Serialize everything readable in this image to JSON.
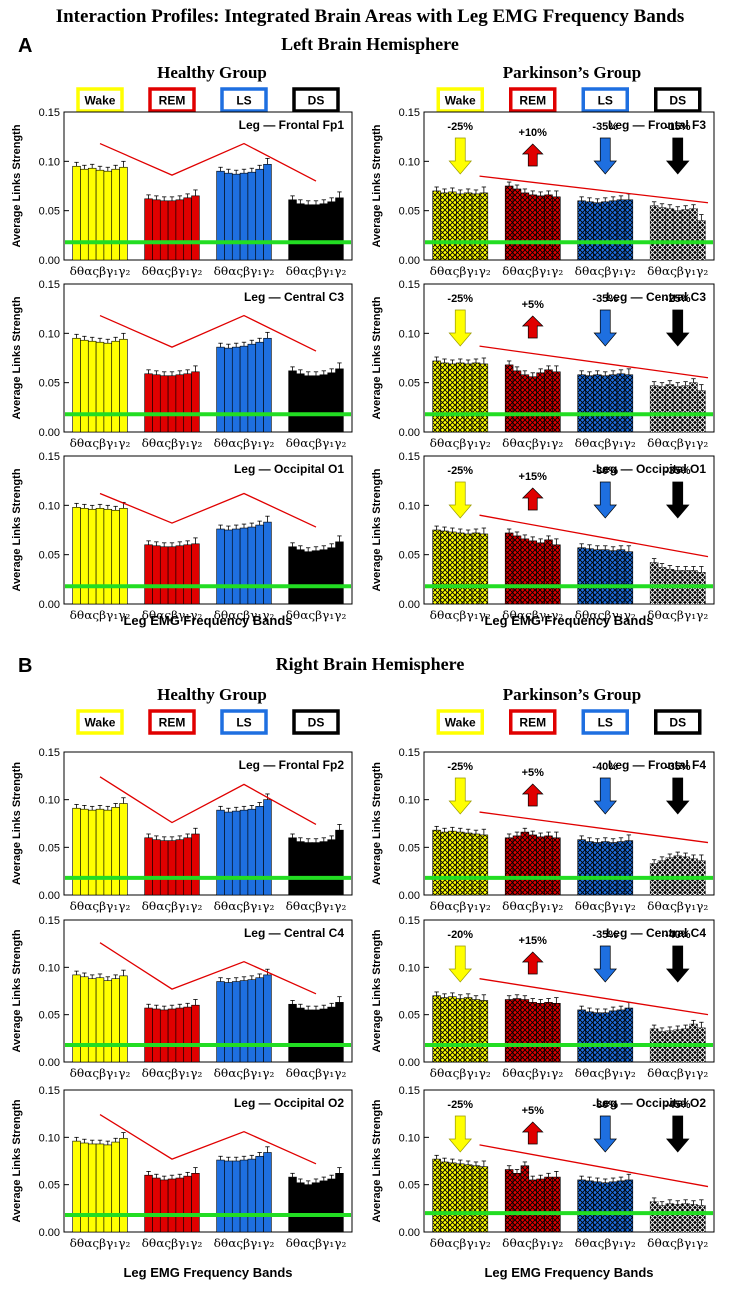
{
  "figure": {
    "title": "Interaction Profiles: Integrated Brain Areas with Leg EMG Frequency Bands",
    "sections": [
      {
        "letter": "A",
        "title": "Left Brain Hemisphere",
        "healthy": "Healthy Group",
        "parkinson": "Parkinson’s Group"
      },
      {
        "letter": "B",
        "title": "Right Brain Hemisphere",
        "healthy": "Healthy Group",
        "parkinson": "Parkinson’s Group"
      }
    ],
    "xlabel": "Leg EMG Frequency Bands",
    "band_label": "δθαςβγ₁γ₂",
    "legend": [
      {
        "label": "Wake",
        "color": "#ffff00"
      },
      {
        "label": "REM",
        "color": "#e00000"
      },
      {
        "label": "LS",
        "color": "#1e6fe0"
      },
      {
        "label": "DS",
        "color": "#000000"
      }
    ]
  },
  "chart_data": [
    {
      "type": "bar",
      "title": "Leg — Frontal Fp1",
      "group": "Healthy",
      "ylabel": "Average Links Strength",
      "ylim": [
        0,
        0.15
      ],
      "yticks": [
        "0.00",
        "0.05",
        "0.10",
        "0.15"
      ],
      "threshold": 0.018,
      "stages": [
        "Wake",
        "REM",
        "LS",
        "DS"
      ],
      "bands": [
        "δ",
        "θ",
        "α",
        "σ",
        "β",
        "γ1",
        "γ2"
      ],
      "series": [
        {
          "name": "Wake",
          "values": [
            0.095,
            0.092,
            0.093,
            0.091,
            0.09,
            0.092,
            0.094
          ]
        },
        {
          "name": "REM",
          "values": [
            0.062,
            0.061,
            0.06,
            0.06,
            0.061,
            0.063,
            0.065
          ]
        },
        {
          "name": "LS",
          "values": [
            0.09,
            0.088,
            0.087,
            0.088,
            0.089,
            0.092,
            0.097
          ]
        },
        {
          "name": "DS",
          "values": [
            0.061,
            0.057,
            0.056,
            0.056,
            0.057,
            0.059,
            0.063
          ]
        }
      ],
      "trend": [
        0.118,
        0.086,
        0.118,
        0.08
      ]
    },
    {
      "type": "bar",
      "title": "Leg — Frontal F3",
      "group": "Parkinson",
      "ylabel": "Average Links Strength",
      "ylim": [
        0,
        0.15
      ],
      "yticks": [
        "0.00",
        "0.05",
        "0.10",
        "0.15"
      ],
      "threshold": 0.018,
      "stages": [
        "Wake",
        "REM",
        "LS",
        "DS"
      ],
      "bands": [
        "δ",
        "θ",
        "α",
        "σ",
        "β",
        "γ1",
        "γ2"
      ],
      "series": [
        {
          "name": "Wake",
          "values": [
            0.07,
            0.068,
            0.069,
            0.067,
            0.068,
            0.067,
            0.068
          ]
        },
        {
          "name": "REM",
          "values": [
            0.075,
            0.072,
            0.068,
            0.066,
            0.065,
            0.066,
            0.064
          ]
        },
        {
          "name": "LS",
          "values": [
            0.06,
            0.059,
            0.058,
            0.059,
            0.06,
            0.061,
            0.061
          ]
        },
        {
          "name": "DS",
          "values": [
            0.055,
            0.053,
            0.052,
            0.05,
            0.051,
            0.052,
            0.04
          ]
        }
      ],
      "changes": [
        "-25%",
        "+10%",
        "-35%",
        "-15%"
      ],
      "arrows": [
        "down",
        "up",
        "down",
        "down"
      ],
      "trend_line": [
        0.085,
        0.058
      ]
    },
    {
      "type": "bar",
      "title": "Leg — Central C3",
      "group": "Healthy",
      "ylabel": "Average Links Strength",
      "ylim": [
        0,
        0.15
      ],
      "yticks": [
        "0.00",
        "0.05",
        "0.10",
        "0.15"
      ],
      "threshold": 0.018,
      "stages": [
        "Wake",
        "REM",
        "LS",
        "DS"
      ],
      "bands": [
        "δ",
        "θ",
        "α",
        "σ",
        "β",
        "γ1",
        "γ2"
      ],
      "series": [
        {
          "name": "Wake",
          "values": [
            0.095,
            0.093,
            0.092,
            0.091,
            0.09,
            0.092,
            0.094
          ]
        },
        {
          "name": "REM",
          "values": [
            0.059,
            0.058,
            0.057,
            0.057,
            0.058,
            0.059,
            0.061
          ]
        },
        {
          "name": "LS",
          "values": [
            0.086,
            0.085,
            0.086,
            0.087,
            0.089,
            0.091,
            0.095
          ]
        },
        {
          "name": "DS",
          "values": [
            0.062,
            0.059,
            0.057,
            0.057,
            0.058,
            0.06,
            0.064
          ]
        }
      ],
      "trend": [
        0.118,
        0.086,
        0.118,
        0.082
      ]
    },
    {
      "type": "bar",
      "title": "Leg — Central C3",
      "group": "Parkinson",
      "ylabel": "Average Links Strength",
      "ylim": [
        0,
        0.15
      ],
      "yticks": [
        "0.00",
        "0.05",
        "0.10",
        "0.15"
      ],
      "threshold": 0.018,
      "stages": [
        "Wake",
        "REM",
        "LS",
        "DS"
      ],
      "bands": [
        "δ",
        "θ",
        "α",
        "σ",
        "β",
        "γ1",
        "γ2"
      ],
      "series": [
        {
          "name": "Wake",
          "values": [
            0.072,
            0.07,
            0.069,
            0.07,
            0.069,
            0.07,
            0.069
          ]
        },
        {
          "name": "REM",
          "values": [
            0.068,
            0.062,
            0.058,
            0.056,
            0.06,
            0.063,
            0.061
          ]
        },
        {
          "name": "LS",
          "values": [
            0.058,
            0.057,
            0.058,
            0.057,
            0.058,
            0.059,
            0.058
          ]
        },
        {
          "name": "DS",
          "values": [
            0.047,
            0.046,
            0.048,
            0.046,
            0.047,
            0.05,
            0.042
          ]
        }
      ],
      "changes": [
        "-25%",
        "+5%",
        "-35%",
        "-25%"
      ],
      "arrows": [
        "down",
        "up",
        "down",
        "down"
      ],
      "trend_line": [
        0.087,
        0.055
      ]
    },
    {
      "type": "bar",
      "title": "Leg — Occipital O1",
      "group": "Healthy",
      "ylabel": "Average Links Strength",
      "ylim": [
        0,
        0.15
      ],
      "yticks": [
        "0.00",
        "0.05",
        "0.10",
        "0.15"
      ],
      "threshold": 0.018,
      "stages": [
        "Wake",
        "REM",
        "LS",
        "DS"
      ],
      "bands": [
        "δ",
        "θ",
        "α",
        "σ",
        "β",
        "γ1",
        "γ2"
      ],
      "series": [
        {
          "name": "Wake",
          "values": [
            0.098,
            0.097,
            0.096,
            0.097,
            0.096,
            0.095,
            0.097
          ]
        },
        {
          "name": "REM",
          "values": [
            0.06,
            0.059,
            0.058,
            0.058,
            0.059,
            0.06,
            0.061
          ]
        },
        {
          "name": "LS",
          "values": [
            0.076,
            0.075,
            0.076,
            0.077,
            0.078,
            0.08,
            0.083
          ]
        },
        {
          "name": "DS",
          "values": [
            0.058,
            0.055,
            0.053,
            0.054,
            0.055,
            0.057,
            0.063
          ]
        }
      ],
      "trend": [
        0.112,
        0.082,
        0.112,
        0.078
      ]
    },
    {
      "type": "bar",
      "title": "Leg — Occipital O1",
      "group": "Parkinson",
      "ylabel": "Average Links Strength",
      "ylim": [
        0,
        0.15
      ],
      "yticks": [
        "0.00",
        "0.05",
        "0.10",
        "0.15"
      ],
      "threshold": 0.018,
      "stages": [
        "Wake",
        "REM",
        "LS",
        "DS"
      ],
      "bands": [
        "δ",
        "θ",
        "α",
        "σ",
        "β",
        "γ1",
        "γ2"
      ],
      "series": [
        {
          "name": "Wake",
          "values": [
            0.075,
            0.074,
            0.073,
            0.072,
            0.071,
            0.072,
            0.071
          ]
        },
        {
          "name": "REM",
          "values": [
            0.072,
            0.069,
            0.066,
            0.064,
            0.062,
            0.065,
            0.06
          ]
        },
        {
          "name": "LS",
          "values": [
            0.057,
            0.056,
            0.055,
            0.055,
            0.054,
            0.055,
            0.053
          ]
        },
        {
          "name": "DS",
          "values": [
            0.042,
            0.037,
            0.035,
            0.034,
            0.034,
            0.034,
            0.032
          ]
        }
      ],
      "changes": [
        "-25%",
        "+15%",
        "-30%",
        "-35%"
      ],
      "arrows": [
        "down",
        "up",
        "down",
        "down"
      ],
      "trend_line": [
        0.09,
        0.048
      ]
    },
    {
      "type": "bar",
      "title": "Leg — Frontal Fp2",
      "group": "Healthy",
      "ylabel": "Average Links Strength",
      "ylim": [
        0,
        0.15
      ],
      "yticks": [
        "0.00",
        "0.05",
        "0.10",
        "0.15"
      ],
      "threshold": 0.018,
      "stages": [
        "Wake",
        "REM",
        "LS",
        "DS"
      ],
      "bands": [
        "δ",
        "θ",
        "α",
        "σ",
        "β",
        "γ1",
        "γ2"
      ],
      "series": [
        {
          "name": "Wake",
          "values": [
            0.091,
            0.09,
            0.089,
            0.09,
            0.089,
            0.092,
            0.096
          ]
        },
        {
          "name": "REM",
          "values": [
            0.06,
            0.058,
            0.057,
            0.057,
            0.058,
            0.06,
            0.064
          ]
        },
        {
          "name": "LS",
          "values": [
            0.089,
            0.087,
            0.088,
            0.089,
            0.09,
            0.093,
            0.1
          ]
        },
        {
          "name": "DS",
          "values": [
            0.06,
            0.056,
            0.055,
            0.055,
            0.056,
            0.058,
            0.068
          ]
        }
      ],
      "trend": [
        0.124,
        0.076,
        0.116,
        0.074
      ]
    },
    {
      "type": "bar",
      "title": "Leg — Frontal F4",
      "group": "Parkinson",
      "ylabel": "Average Links Strength",
      "ylim": [
        0,
        0.15
      ],
      "yticks": [
        "0.00",
        "0.05",
        "0.10",
        "0.15"
      ],
      "threshold": 0.018,
      "stages": [
        "Wake",
        "REM",
        "LS",
        "DS"
      ],
      "bands": [
        "δ",
        "θ",
        "α",
        "σ",
        "β",
        "γ1",
        "γ2"
      ],
      "series": [
        {
          "name": "Wake",
          "values": [
            0.068,
            0.066,
            0.067,
            0.066,
            0.065,
            0.064,
            0.063
          ]
        },
        {
          "name": "REM",
          "values": [
            0.06,
            0.062,
            0.066,
            0.063,
            0.061,
            0.062,
            0.06
          ]
        },
        {
          "name": "LS",
          "values": [
            0.058,
            0.056,
            0.055,
            0.056,
            0.055,
            0.056,
            0.057
          ]
        },
        {
          "name": "DS",
          "values": [
            0.033,
            0.036,
            0.039,
            0.041,
            0.04,
            0.038,
            0.036
          ]
        }
      ],
      "changes": [
        "-25%",
        "+5%",
        "-40%",
        "-35%"
      ],
      "arrows": [
        "down",
        "up",
        "down",
        "down"
      ],
      "trend_line": [
        0.087,
        0.055
      ]
    },
    {
      "type": "bar",
      "title": "Leg — Central C4",
      "group": "Healthy",
      "ylabel": "Average Links Strength",
      "ylim": [
        0,
        0.15
      ],
      "yticks": [
        "0.00",
        "0.05",
        "0.10",
        "0.15"
      ],
      "threshold": 0.018,
      "stages": [
        "Wake",
        "REM",
        "LS",
        "DS"
      ],
      "bands": [
        "δ",
        "θ",
        "α",
        "σ",
        "β",
        "γ1",
        "γ2"
      ],
      "series": [
        {
          "name": "Wake",
          "values": [
            0.092,
            0.09,
            0.088,
            0.089,
            0.086,
            0.088,
            0.091
          ]
        },
        {
          "name": "REM",
          "values": [
            0.057,
            0.056,
            0.055,
            0.056,
            0.057,
            0.058,
            0.06
          ]
        },
        {
          "name": "LS",
          "values": [
            0.085,
            0.084,
            0.085,
            0.086,
            0.087,
            0.089,
            0.092
          ]
        },
        {
          "name": "DS",
          "values": [
            0.061,
            0.057,
            0.055,
            0.055,
            0.056,
            0.058,
            0.063
          ]
        }
      ],
      "trend": [
        0.126,
        0.077,
        0.106,
        0.072
      ]
    },
    {
      "type": "bar",
      "title": "Leg — Central C4",
      "group": "Parkinson",
      "ylabel": "Average Links Strength",
      "ylim": [
        0,
        0.15
      ],
      "yticks": [
        "0.00",
        "0.05",
        "0.10",
        "0.15"
      ],
      "threshold": 0.018,
      "stages": [
        "Wake",
        "REM",
        "LS",
        "DS"
      ],
      "bands": [
        "δ",
        "θ",
        "α",
        "σ",
        "β",
        "γ1",
        "γ2"
      ],
      "series": [
        {
          "name": "Wake",
          "values": [
            0.07,
            0.068,
            0.069,
            0.067,
            0.068,
            0.066,
            0.065
          ]
        },
        {
          "name": "REM",
          "values": [
            0.066,
            0.067,
            0.066,
            0.063,
            0.062,
            0.063,
            0.062
          ]
        },
        {
          "name": "LS",
          "values": [
            0.055,
            0.053,
            0.052,
            0.052,
            0.054,
            0.055,
            0.057
          ]
        },
        {
          "name": "DS",
          "values": [
            0.035,
            0.032,
            0.033,
            0.034,
            0.035,
            0.04,
            0.036
          ]
        }
      ],
      "changes": [
        "-20%",
        "+15%",
        "-35%",
        "-40%"
      ],
      "arrows": [
        "down",
        "up",
        "down",
        "down"
      ],
      "trend_line": [
        0.088,
        0.05
      ]
    },
    {
      "type": "bar",
      "title": "Leg — Occipital O2",
      "group": "Healthy",
      "ylabel": "Average Links Strength",
      "ylim": [
        0,
        0.15
      ],
      "yticks": [
        "0.00",
        "0.05",
        "0.10",
        "0.15"
      ],
      "threshold": 0.018,
      "stages": [
        "Wake",
        "REM",
        "LS",
        "DS"
      ],
      "bands": [
        "δ",
        "θ",
        "α",
        "σ",
        "β",
        "γ1",
        "γ2"
      ],
      "series": [
        {
          "name": "Wake",
          "values": [
            0.096,
            0.094,
            0.093,
            0.093,
            0.092,
            0.095,
            0.099
          ]
        },
        {
          "name": "REM",
          "values": [
            0.06,
            0.057,
            0.055,
            0.056,
            0.057,
            0.059,
            0.062
          ]
        },
        {
          "name": "LS",
          "values": [
            0.076,
            0.075,
            0.075,
            0.076,
            0.077,
            0.08,
            0.084
          ]
        },
        {
          "name": "DS",
          "values": [
            0.058,
            0.052,
            0.05,
            0.052,
            0.054,
            0.056,
            0.062
          ]
        }
      ],
      "trend": [
        0.124,
        0.077,
        0.106,
        0.072
      ]
    },
    {
      "type": "bar",
      "title": "Leg — Occipital O2",
      "group": "Parkinson",
      "ylabel": "Average Links Strength",
      "ylim": [
        0,
        0.15
      ],
      "yticks": [
        "0.00",
        "0.05",
        "0.10",
        "0.15"
      ],
      "threshold": 0.02,
      "stages": [
        "Wake",
        "REM",
        "LS",
        "DS"
      ],
      "bands": [
        "δ",
        "θ",
        "α",
        "σ",
        "β",
        "γ1",
        "γ2"
      ],
      "series": [
        {
          "name": "Wake",
          "values": [
            0.077,
            0.074,
            0.073,
            0.072,
            0.071,
            0.07,
            0.069
          ]
        },
        {
          "name": "REM",
          "values": [
            0.066,
            0.062,
            0.07,
            0.055,
            0.056,
            0.058,
            0.058
          ]
        },
        {
          "name": "LS",
          "values": [
            0.055,
            0.054,
            0.053,
            0.052,
            0.053,
            0.054,
            0.055
          ]
        },
        {
          "name": "DS",
          "values": [
            0.032,
            0.028,
            0.03,
            0.029,
            0.03,
            0.029,
            0.028
          ]
        }
      ],
      "changes": [
        "-25%",
        "+5%",
        "-30%",
        "-45%"
      ],
      "arrows": [
        "down",
        "up",
        "down",
        "down"
      ],
      "trend_line": [
        0.092,
        0.048
      ]
    }
  ]
}
